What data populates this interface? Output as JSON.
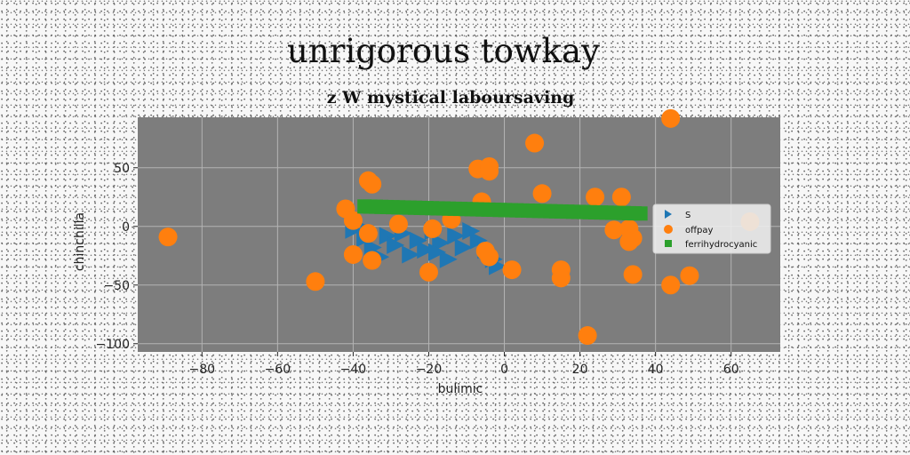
{
  "chart_data": {
    "type": "scatter",
    "title": "unrigorous towkay",
    "subtitle": "z W mystical laboursaving",
    "xlabel": "bulimic",
    "ylabel": "chinchilla",
    "xlim": [
      -97,
      73
    ],
    "ylim": [
      -107,
      93
    ],
    "xticks": [
      -80,
      -60,
      -40,
      -20,
      0,
      20,
      40,
      60
    ],
    "yticks": [
      -100,
      -50,
      0,
      50
    ],
    "grid": true,
    "legend_position": "right",
    "series": [
      {
        "name": "S",
        "marker": "triangle-right",
        "color": "#1f77b4",
        "points": [
          [
            -40,
            -3
          ],
          [
            -37,
            -10
          ],
          [
            -35,
            -18
          ],
          [
            -33,
            -26
          ],
          [
            -31,
            -8
          ],
          [
            -29,
            -16
          ],
          [
            -27,
            -6
          ],
          [
            -25,
            -24
          ],
          [
            -23,
            -12
          ],
          [
            -21,
            -20
          ],
          [
            -19,
            -4
          ],
          [
            -17,
            -14
          ],
          [
            -15,
            -28
          ],
          [
            -13,
            -8
          ],
          [
            -11,
            -18
          ],
          [
            -9,
            -4
          ],
          [
            -7,
            -12
          ],
          [
            -5,
            -20
          ],
          [
            -3,
            -28
          ],
          [
            -2,
            -34
          ],
          [
            -36,
            -4
          ],
          [
            -18,
            -22
          ]
        ]
      },
      {
        "name": "offpay",
        "marker": "circle",
        "color": "#ff7f0e",
        "points": [
          [
            -89,
            -9
          ],
          [
            -50,
            -47
          ],
          [
            -42,
            15
          ],
          [
            -40,
            -24
          ],
          [
            -40,
            5
          ],
          [
            -36,
            39
          ],
          [
            -35,
            36
          ],
          [
            -36,
            -6
          ],
          [
            -35,
            -29
          ],
          [
            -28,
            2
          ],
          [
            -20,
            -39
          ],
          [
            -19,
            -2
          ],
          [
            -14,
            6
          ],
          [
            -7,
            49
          ],
          [
            -6,
            21
          ],
          [
            -4,
            51
          ],
          [
            -4,
            47
          ],
          [
            -5,
            -21
          ],
          [
            -4,
            -26
          ],
          [
            2,
            -37
          ],
          [
            8,
            71
          ],
          [
            10,
            28
          ],
          [
            15,
            -37
          ],
          [
            15,
            -44
          ],
          [
            22,
            -93
          ],
          [
            24,
            25
          ],
          [
            31,
            25
          ],
          [
            29,
            -3
          ],
          [
            33,
            -2
          ],
          [
            34,
            -10
          ],
          [
            33,
            -13
          ],
          [
            34,
            -41
          ],
          [
            44,
            92
          ],
          [
            44,
            -50
          ],
          [
            49,
            -42
          ],
          [
            65,
            4
          ]
        ]
      },
      {
        "name": "ferrihydrocyanic",
        "marker": "square",
        "color": "#2ca02c",
        "x_range": [
          -37,
          36
        ],
        "y_range": [
          17,
          11
        ],
        "count": 50
      }
    ]
  }
}
